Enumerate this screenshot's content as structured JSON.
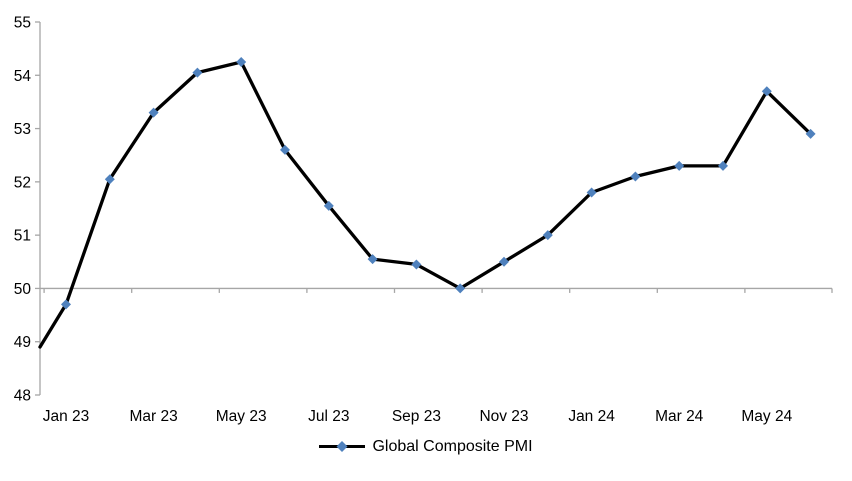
{
  "chart_data": {
    "type": "line",
    "title": "",
    "xlabel": "",
    "ylabel": "",
    "categories": [
      "Jan 23",
      "Feb 23",
      "Mar 23",
      "Apr 23",
      "May 23",
      "Jun 23",
      "Jul 23",
      "Aug 23",
      "Sep 23",
      "Oct 23",
      "Nov 23",
      "Dec 23",
      "Jan 24",
      "Feb 24",
      "Mar 24",
      "Apr 24",
      "May 24",
      "Jun 24"
    ],
    "series": [
      {
        "name": "Global Composite PMI",
        "values": [
          49.7,
          52.05,
          53.3,
          54.05,
          54.25,
          52.6,
          51.55,
          50.55,
          50.45,
          50.0,
          50.5,
          51.0,
          51.8,
          52.1,
          52.3,
          52.3,
          53.7,
          52.9
        ],
        "marker": "diamond",
        "marker_color": "#4F81BD",
        "line_color": "#000000"
      }
    ],
    "lead_in_value_at_left_edge": 48.9,
    "ylim": [
      48,
      55
    ],
    "y_ticks": [
      48,
      49,
      50,
      51,
      52,
      53,
      54,
      55
    ],
    "x_tick_labels": [
      "Jan 23",
      "Mar 23",
      "May 23",
      "Jul 23",
      "Sep 23",
      "Nov 23",
      "Jan 24",
      "Mar 24",
      "May 24"
    ],
    "x_axis_crosses_at": 50,
    "x_labels_position": "low",
    "grid": false,
    "legend_position": "bottom-center",
    "axis_color": "#A6A6A6",
    "text_color": "#000000",
    "background_color": "#FFFFFF"
  },
  "legend": {
    "label": "Global Composite PMI"
  }
}
